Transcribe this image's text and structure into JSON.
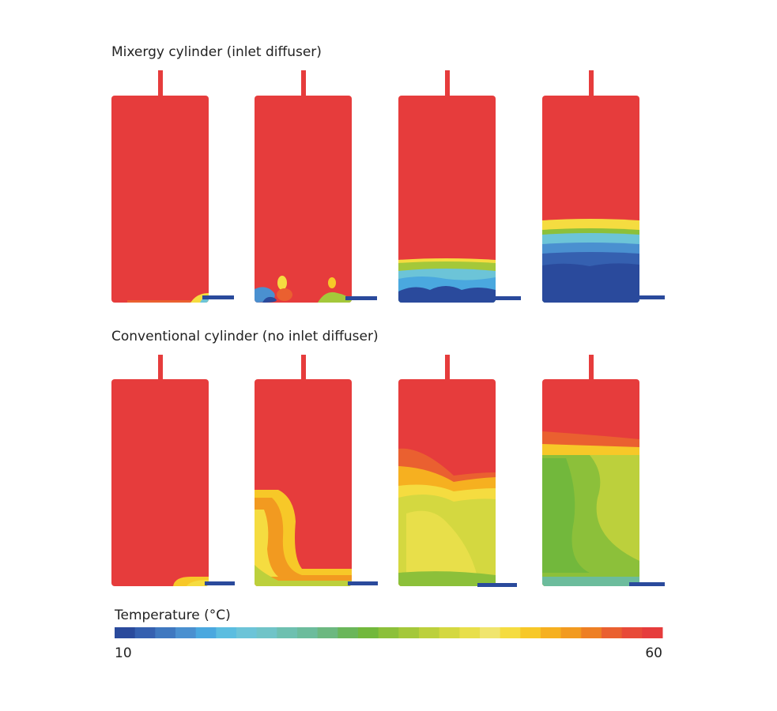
{
  "sections": [
    {
      "title": "Mixergy cylinder (inlet diffuser)"
    },
    {
      "title": "Conventional cylinder (no inlet diffuser)"
    }
  ],
  "colorbar": {
    "label": "Temperature (°C)",
    "min": 10,
    "max": 60
  }
}
